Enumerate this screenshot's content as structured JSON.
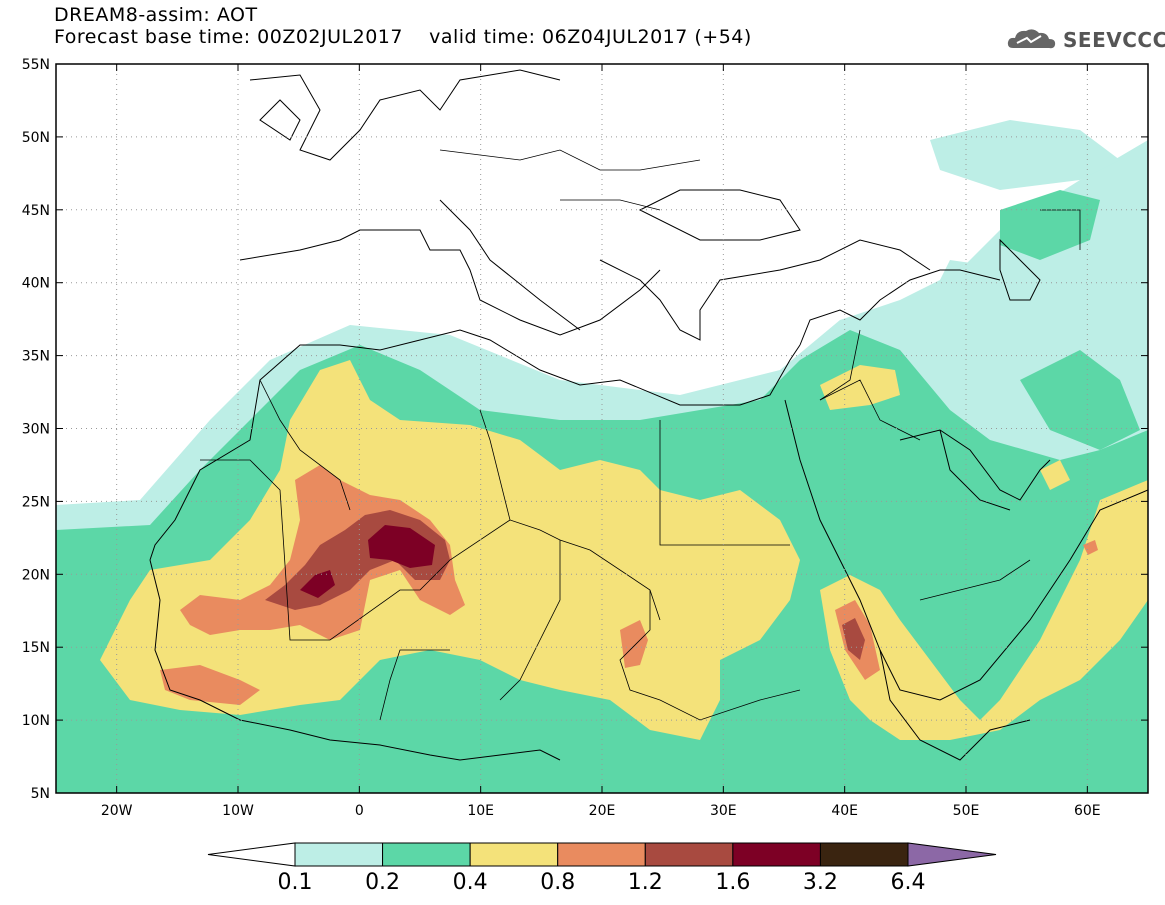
{
  "header": {
    "title_line1": "DREAM8-assim: AOT",
    "title_line2": "Forecast base time: 00Z02JUL2017    valid time: 06Z04JUL2017 (+54)"
  },
  "logo": {
    "text": "SEEVCCC",
    "icon": "cloud-logo-icon"
  },
  "map": {
    "lon_range": [
      -25,
      65
    ],
    "lat_range": [
      5,
      55
    ],
    "x_ticks": [
      {
        "lon": -20,
        "label": "20W"
      },
      {
        "lon": -10,
        "label": "10W"
      },
      {
        "lon": 0,
        "label": "0"
      },
      {
        "lon": 10,
        "label": "10E"
      },
      {
        "lon": 20,
        "label": "20E"
      },
      {
        "lon": 30,
        "label": "30E"
      },
      {
        "lon": 40,
        "label": "40E"
      },
      {
        "lon": 50,
        "label": "50E"
      },
      {
        "lon": 60,
        "label": "60E"
      }
    ],
    "y_ticks": [
      {
        "lat": 55,
        "label": "55N"
      },
      {
        "lat": 50,
        "label": "50N"
      },
      {
        "lat": 45,
        "label": "45N"
      },
      {
        "lat": 40,
        "label": "40N"
      },
      {
        "lat": 35,
        "label": "35N"
      },
      {
        "lat": 30,
        "label": "30N"
      },
      {
        "lat": 25,
        "label": "25N"
      },
      {
        "lat": 20,
        "label": "20N"
      },
      {
        "lat": 15,
        "label": "15N"
      },
      {
        "lat": 10,
        "label": "10N"
      },
      {
        "lat": 5,
        "label": "5N"
      }
    ],
    "grid": "dotted"
  },
  "colorbar": {
    "levels": [
      "0.1",
      "0.2",
      "0.4",
      "0.8",
      "1.2",
      "1.6",
      "3.2",
      "6.4"
    ],
    "colors": {
      "below": "#ffffff",
      "c1": "#bdeee6",
      "c2": "#5cd7a7",
      "c3": "#f4e27a",
      "c4": "#e98b5f",
      "c5": "#a84a40",
      "c6": "#7d0025",
      "c7": "#3a2410",
      "above": "#8c68a6"
    }
  }
}
